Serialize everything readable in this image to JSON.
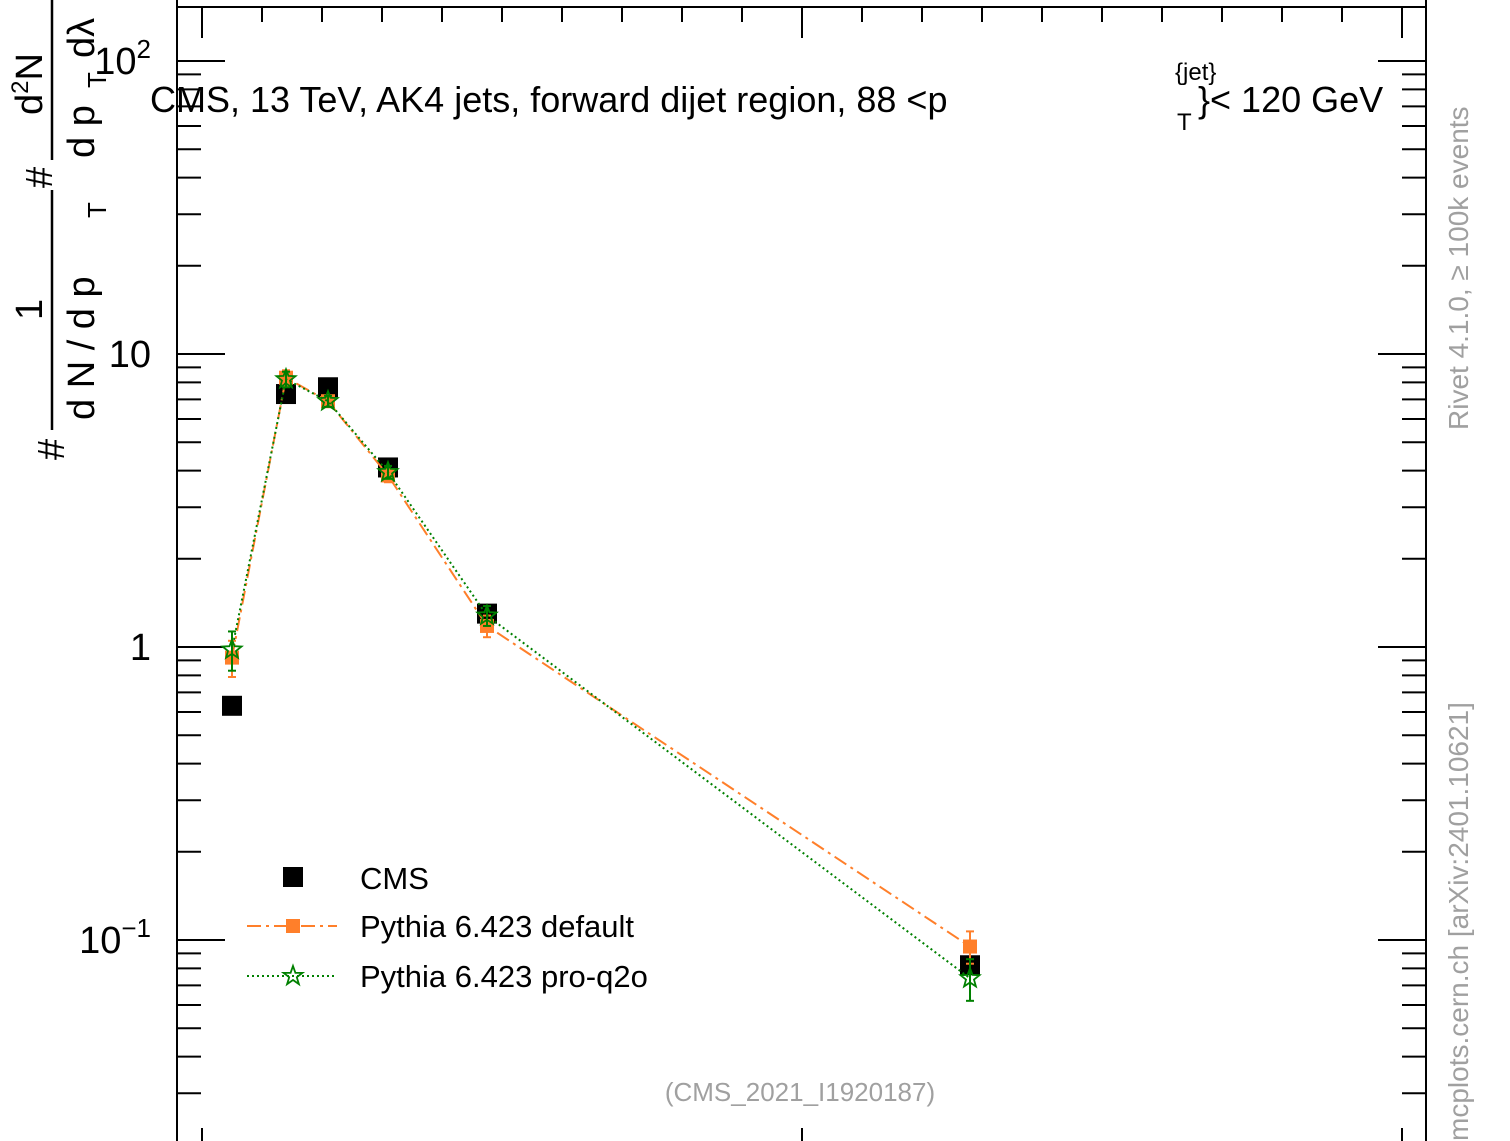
{
  "chart_data": {
    "type": "line",
    "title": "CMS, 13 TeV, AK4 jets, forward dijet region, 88 <p",
    "title_sup": "{jet}",
    "title_sub": "T",
    "title_tail": "}< 120 GeV",
    "ylabel": {
      "hash1": "#",
      "frac_num": "1",
      "frac_den": "d N / d p",
      "frac_den_sub": "T",
      "hash2": "#",
      "d2n_num": "d",
      "d2n_num_sup": "2",
      "d2n_num_tail": "N",
      "d2n_den": "d p",
      "d2n_den_sub": "T",
      "d2n_den_tail": "dλ"
    },
    "yscale": "log",
    "ylim": [
      0.028,
      150
    ],
    "xlim": [
      0,
      1
    ],
    "yticks": [
      {
        "value": 0.1,
        "base": "10",
        "exp": "−1"
      },
      {
        "value": 1,
        "base": "1",
        "exp": ""
      },
      {
        "value": 10,
        "base": "10",
        "exp": ""
      },
      {
        "value": 100,
        "base": "10",
        "exp": "2"
      }
    ],
    "series": [
      {
        "name": "CMS",
        "color": "#000000",
        "marker": "square",
        "line": "none",
        "points": [
          {
            "x": 0.05,
            "y": 0.63
          },
          {
            "x": 0.14,
            "y": 7.3
          },
          {
            "x": 0.21,
            "y": 7.7
          },
          {
            "x": 0.31,
            "y": 4.1
          },
          {
            "x": 0.475,
            "y": 1.3
          },
          {
            "x": 1.28,
            "y": 0.082
          }
        ]
      },
      {
        "name": "Pythia 6.423 default",
        "color": "#ff7f2a",
        "marker": "filled-square",
        "line": "dashdot",
        "points": [
          {
            "x": 0.05,
            "y": 0.92,
            "err": 0.13
          },
          {
            "x": 0.14,
            "y": 8.3,
            "err": 0.5
          },
          {
            "x": 0.21,
            "y": 6.9,
            "err": 0.3
          },
          {
            "x": 0.31,
            "y": 3.85,
            "err": 0.2
          },
          {
            "x": 0.475,
            "y": 1.18,
            "err": 0.1
          },
          {
            "x": 1.28,
            "y": 0.095,
            "err": 0.012
          }
        ]
      },
      {
        "name": "Pythia 6.423 pro-q2o",
        "color": "#008000",
        "marker": "star",
        "line": "dotted",
        "points": [
          {
            "x": 0.05,
            "y": 0.98,
            "err": 0.15
          },
          {
            "x": 0.14,
            "y": 8.2,
            "err": 0.5
          },
          {
            "x": 0.21,
            "y": 6.9,
            "err": 0.3
          },
          {
            "x": 0.31,
            "y": 3.95,
            "err": 0.2
          },
          {
            "x": 0.475,
            "y": 1.28,
            "err": 0.1
          },
          {
            "x": 1.28,
            "y": 0.074,
            "err": 0.012
          }
        ]
      }
    ],
    "legend_position": "bottom-left",
    "grid": false,
    "annotation": "(CMS_2021_I1920187)",
    "side_label_upper": "Rivet 4.1.0, ≥ 100k events",
    "side_label_lower": "mcplots.cern.ch [arXiv:2401.10621]"
  }
}
